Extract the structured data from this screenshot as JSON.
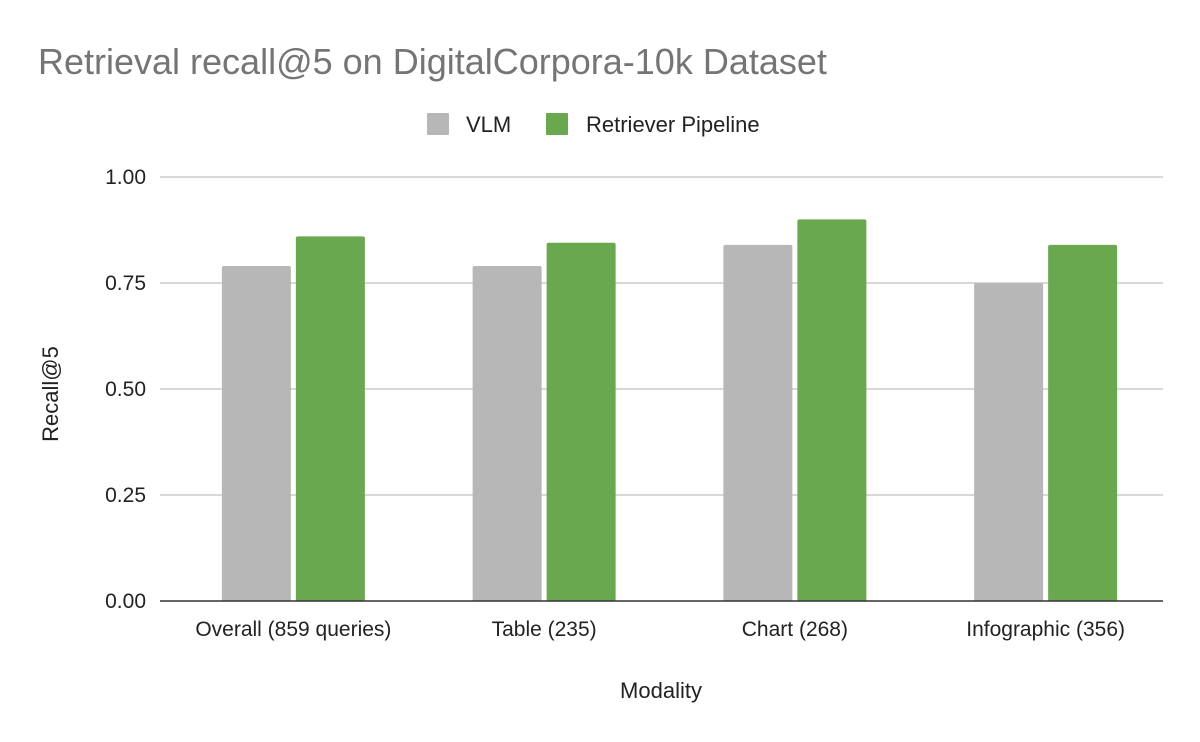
{
  "chart_data": {
    "type": "bar",
    "title": "Retrieval recall@5 on DigitalCorpora-10k Dataset",
    "xlabel": "Modality",
    "ylabel": "Recall@5",
    "ylim": [
      0,
      1
    ],
    "yticks": [
      "0.00",
      "0.25",
      "0.50",
      "0.75",
      "1.00"
    ],
    "ytick_values": [
      0,
      0.25,
      0.5,
      0.75,
      1.0
    ],
    "categories": [
      "Overall (859 queries)",
      "Table (235)",
      "Chart (268)",
      "Infographic (356)"
    ],
    "series": [
      {
        "name": "VLM",
        "color": "#b7b7b7",
        "values": [
          0.79,
          0.79,
          0.84,
          0.75
        ]
      },
      {
        "name": "Retriever Pipeline",
        "color": "#6aa84f",
        "values": [
          0.86,
          0.845,
          0.9,
          0.84
        ]
      }
    ],
    "legend_position": "top",
    "grid": true
  }
}
